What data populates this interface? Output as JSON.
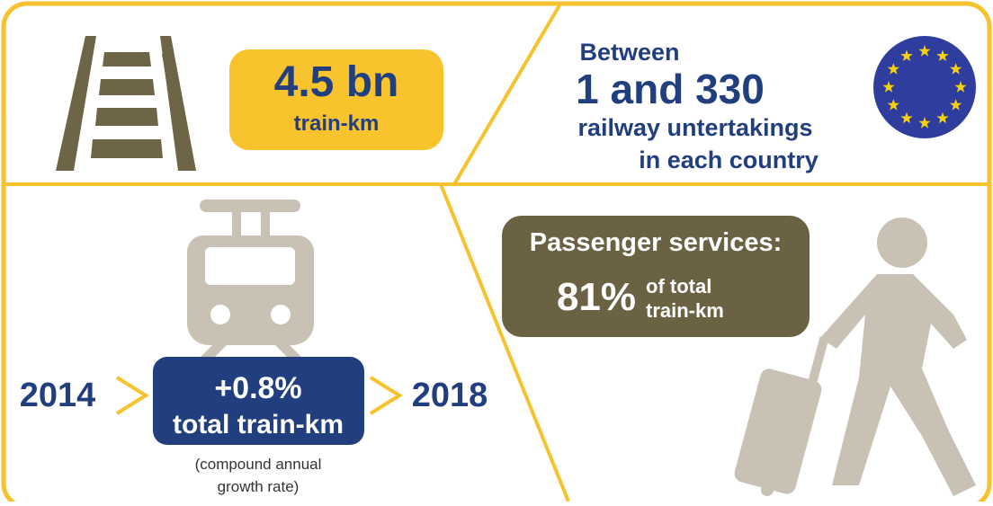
{
  "panels": {
    "train_km": {
      "value": "4.5 bn",
      "unit": "train-km"
    },
    "undertakings": {
      "intro": "Between",
      "range": "1 and 330",
      "lines": [
        "railway untertakings",
        "in each country"
      ]
    },
    "growth": {
      "start": "2014",
      "value": "+0.8%",
      "label": "total train-km",
      "end": "2018",
      "note": [
        "(compound annual",
        "growth rate)"
      ]
    },
    "passenger": {
      "title": "Passenger services:",
      "value": "81%",
      "note": [
        "of total",
        "train-km"
      ]
    }
  }
}
